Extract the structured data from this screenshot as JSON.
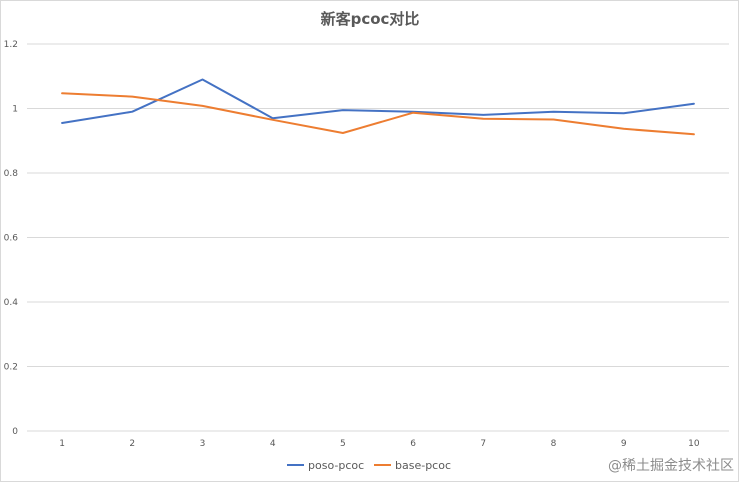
{
  "chart_data": {
    "type": "line",
    "title": "新客pcoc对比",
    "xlabel": "",
    "ylabel": "",
    "x": [
      1,
      2,
      3,
      4,
      5,
      6,
      7,
      8,
      9,
      10
    ],
    "x_tick_labels": [
      "1",
      "2",
      "3",
      "4",
      "5",
      "6",
      "7",
      "8",
      "9",
      "10"
    ],
    "ylim": [
      0,
      1.2
    ],
    "y_ticks": [
      0,
      0.2,
      0.4,
      0.6,
      0.8,
      1,
      1.2
    ],
    "y_tick_labels": [
      "0",
      "0.2",
      "0.4",
      "0.6",
      "0.8",
      "1",
      "1.2"
    ],
    "grid": true,
    "legend_position": "bottom",
    "series": [
      {
        "name": "poso-pcoc",
        "color": "#4472c4",
        "values": [
          0.955,
          0.99,
          1.09,
          0.97,
          0.995,
          0.99,
          0.98,
          0.99,
          0.985,
          1.015
        ]
      },
      {
        "name": "base-pcoc",
        "color": "#ed7d31",
        "values": [
          1.047,
          1.037,
          1.008,
          0.965,
          0.924,
          0.987,
          0.968,
          0.966,
          0.937,
          0.92
        ]
      }
    ]
  },
  "watermark": {
    "text": "@稀土掘金技术社区"
  }
}
